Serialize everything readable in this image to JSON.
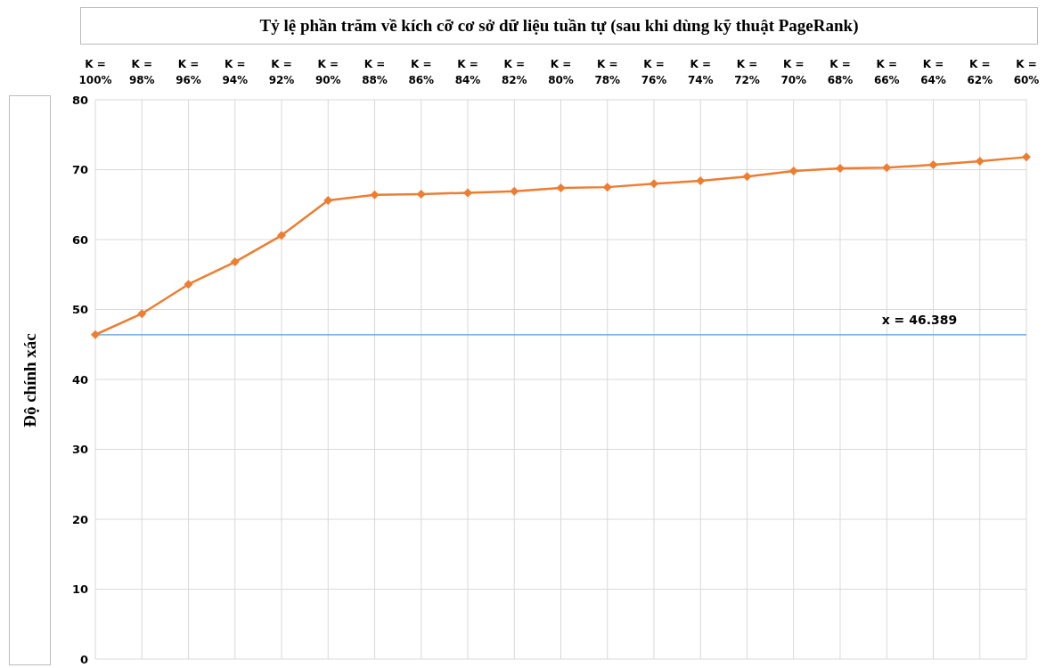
{
  "chart_data": {
    "type": "line",
    "title": "Tỷ lệ phần trăm về kích cỡ cơ sở dữ liệu tuần tự (sau khi dùng kỹ thuật PageRank)",
    "ylabel": "Độ chính xác",
    "categories": [
      "K = 100%",
      "K = 98%",
      "K = 96%",
      "K = 94%",
      "K = 92%",
      "K = 90%",
      "K = 88%",
      "K = 86%",
      "K = 84%",
      "K = 82%",
      "K = 80%",
      "K = 78%",
      "K = 76%",
      "K = 74%",
      "K = 72%",
      "K = 70%",
      "K = 68%",
      "K = 66%",
      "K = 64%",
      "K = 62%",
      "K = 60%"
    ],
    "series": [
      {
        "color": "#ed7d31",
        "values": [
          46.4,
          49.4,
          53.6,
          56.8,
          60.6,
          65.6,
          66.4,
          66.5,
          66.7,
          66.9,
          67.4,
          67.5,
          68.0,
          68.4,
          69.0,
          69.8,
          70.2,
          70.3,
          70.7,
          71.2,
          71.8
        ]
      }
    ],
    "ylim": [
      0,
      80
    ],
    "yticks": [
      0,
      10,
      20,
      30,
      40,
      50,
      60,
      70,
      80
    ],
    "grid": true,
    "marker": "diamond",
    "line_style": "solid",
    "ref_lines": [
      {
        "axis": "y",
        "value": 46.389,
        "label": "x = 46.389",
        "color": "#5b9bd5"
      }
    ]
  }
}
